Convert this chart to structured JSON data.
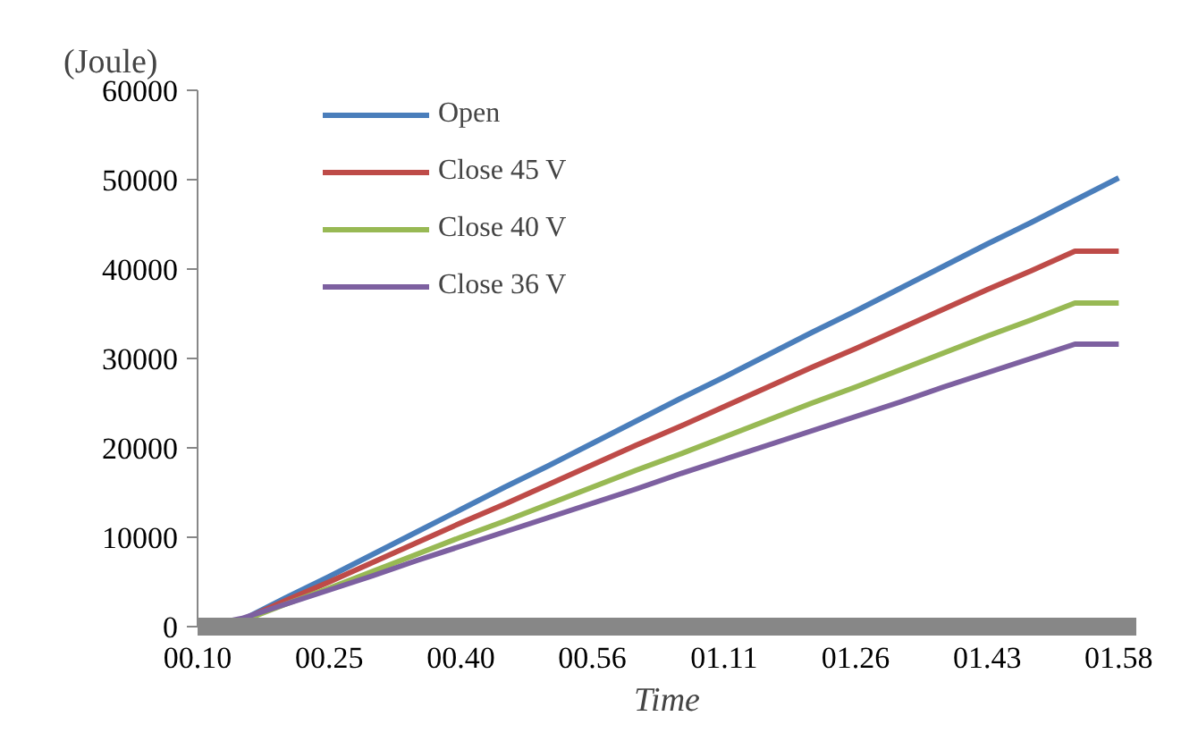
{
  "chart_data": {
    "type": "line",
    "ylabel": "(Joule)",
    "xlabel": "Time",
    "categories": [
      "00.10",
      null,
      null,
      "00.25",
      null,
      null,
      "00.40",
      null,
      null,
      "00.56",
      null,
      null,
      "01.11",
      null,
      null,
      "01.26",
      null,
      null,
      "01.43",
      null,
      null,
      "01.58"
    ],
    "series": [
      {
        "name": "Open",
        "color": "#4a7ebb",
        "values": [
          0,
          700,
          3200,
          5600,
          8100,
          10600,
          13100,
          15600,
          18000,
          20500,
          23000,
          25500,
          27900,
          30400,
          32900,
          35300,
          37800,
          40300,
          42800,
          45200,
          47700,
          50200
        ]
      },
      {
        "name": "Close 45 V",
        "color": "#be4b48",
        "values": [
          0,
          700,
          2900,
          5000,
          7200,
          9400,
          11600,
          13700,
          15900,
          18100,
          20300,
          22400,
          24600,
          26800,
          29000,
          31100,
          33300,
          35500,
          37700,
          39800,
          42000,
          42000
        ]
      },
      {
        "name": "Close 40 V",
        "color": "#98b954",
        "values": [
          0,
          600,
          2500,
          4300,
          6200,
          8100,
          10000,
          11800,
          13700,
          15600,
          17500,
          19300,
          21200,
          23100,
          25000,
          26800,
          28700,
          30600,
          32500,
          34300,
          36200,
          36200
        ]
      },
      {
        "name": "Close 36 V",
        "color": "#7d60a0",
        "values": [
          0,
          900,
          2500,
          4100,
          5700,
          7400,
          9000,
          10600,
          12200,
          13800,
          15400,
          17100,
          18700,
          20300,
          21900,
          23500,
          25100,
          26800,
          28400,
          30000,
          31600,
          31600
        ]
      }
    ],
    "ylim": [
      0,
      60000
    ],
    "yticks": [
      0,
      10000,
      20000,
      30000,
      40000,
      50000,
      60000
    ],
    "grid": false,
    "legend": "top left",
    "marker": "none",
    "line_style": "solid"
  }
}
